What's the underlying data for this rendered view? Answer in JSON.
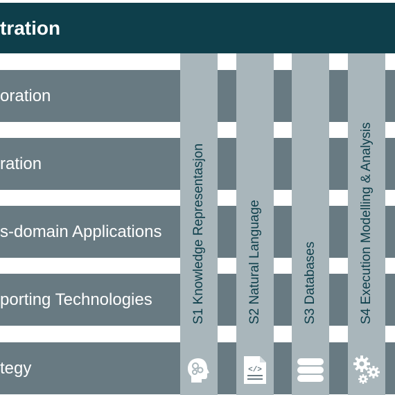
{
  "header": {
    "title": "tration"
  },
  "rows": [
    {
      "label": "oration"
    },
    {
      "label": "ration"
    },
    {
      "label": "s-domain Applications"
    },
    {
      "label": "porting Technologies"
    },
    {
      "label": "tegy"
    }
  ],
  "columns": [
    {
      "label": "S1 Knowledge Representasjon",
      "icon": "head-gears-icon"
    },
    {
      "label": "S2 Natural Language",
      "icon": "code-document-icon"
    },
    {
      "label": "S3 Databases",
      "icon": "database-icon"
    },
    {
      "label": "S4 Execution Modelling & Analysis",
      "icon": "gears-icon"
    }
  ],
  "colors": {
    "header": "#0e3f4b",
    "row": "#687a82",
    "column": "#a9b6bb",
    "text_dark": "#0e3f4b",
    "text_light": "#ffffff"
  }
}
